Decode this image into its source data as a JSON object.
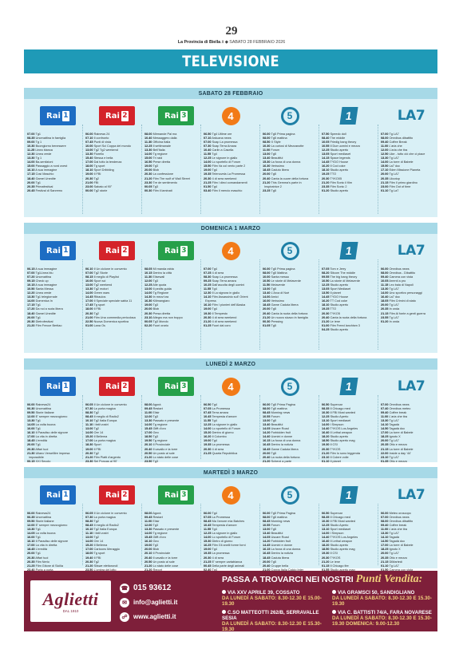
{
  "page": {
    "number": "29",
    "pub_name": "La Provincia di Biella",
    "pub_suffix": ".it",
    "pub_date": "SABATO 28 FEBBRAIO 2026"
  },
  "headline": "TELEVISIONE",
  "days": [
    {
      "title": "SABATO 28 FEBBRAIO",
      "columns": [
        "<b>07.00</b> Tg1\n<b>08.35</b> Unomattina in famiglia\n<b>09.00</b> Tg 1\n<b>10.30</b> Buongiorno benessere\n<b>11.25</b> Linea bianca\n<b>12.30</b> Linea verde\n<b>13.30</b> Tg 1\n<b>14.00</b> Ba-sentizioni\n<b>15.00</b> Passaggio a nord ovest\n<b>16.10</b> A sua immagine\n<b>17.15</b> Cosi Maschio\n<b>18.40</b> Gamel Unedite\n<b>20.00</b> Tg1\n<b>20.35</b> Primafestival\n<b>20.45</b> Festival di Sanremo",
        "<b>06.00</b> Rainews 24\n<b>07.10</b> Il confronto\n<b>07.45</b> Punti di vista\n<b>10.00</b> Sport Sci Coppa del mondo\n<b>13.00</b> Tg2 Tg2 weekend\n<b>13.30</b> Fiorello\n<b>15.40</b> Stessa e bella\n<b>17.00</b> Dai tutto la tendenza\n<b>18.00</b> Tg sport\n<b>18.10</b> Sport Dribbling\n<b>19.00</b> Il FBI\n<b>20.30</b> Tg2\n<b>21.00</b> FBI\n<b>23.00</b> Sabato al 90\"\n<b>00.00</b> Tg2 storie",
        "<b>08.00</b> Mirmande Pal ma\n<b>10.40</b> Messaggero dalla\n<b>11.30</b> Officina Italia\n<b>12.25</b> Il settimanale\n<b>13.30</b> Bell'Italia\n<b>14.00</b> Tg regione\n<b>15.00</b> Tri raid\n<b>16.50</b> Prese diretta\n<b>19.00</b> Tg3\n<b>20.00</b> Blob\n<b>20.30</b> La confessione\n<b>21.20</b> Film The wolf of Wall Street\n<b>23.30</b> Tre de sentimento\n<b>00.05</b> Tg3\n<b>00.30</b> Film il laminati",
        "<b>06.50</b> Tg4 Ultime ore\n<b>07.10</b> Arduana news\n<b>07.00</b> Soap La promessa\n<b>07.30</b> Soap Terra Amara\n<b>10.40</b> Carlin a Casella\n<b>11.55</b> Tg4\n<b>12.25</b> Le signore in giallo\n<b>14.00</b> Lo sportello di Forum\n<b>15.50</b> Film Va col vento parte 2\n<b>19.00</b> Tg4\n<b>19.35</b> Telenovela La Promessa\n<b>20.30</b> 4 di sera weekend\n<b>21.25</b> Film I dieci comandamenti\n<b>01.50</b> Tg4\n<b>03.40</b> Film Il mercio maschio",
        "<b>06.00</b> Tg5 Prima pagina\n<b>08.00</b> Tg5 mattina\n<b>08.50</b> X Style\n<b>10.30</b> La curiosi di Mezzanotte\n<b>11.00</b> Forum\n<b>13.00</b> Tg5\n<b>13.40</b> Beautiful\n<b>15.30</b> La forza di una donna\n<b>16.30</b> Verissimo\n<b>18.45</b> Caduto libero\n<b>20.00</b> Tg5\n<b>20.40</b> Canta la cuore della fortuna\n<b>21.20</b> This Gemma's parte in\n<b>&nbsp;</b> Inspiratrice 2\n<b>23.25</b> Tg5",
        "<b>07.50</b> Speedo doll\n<b>08.40</b> The middle\n<b>10.05</b> Friedig bang theory\n<b>10.55</b> Il Due uomini e mezzo\n<b>12.25</b> Studio aperto\n<b>13.05</b> Sport mediaset\n<b>14.15</b> Space legends\n<b>14.45</b> TYDO House\n<b>16.20</b> Il Cod coke\n<b>18.10</b> Studio aperto\n<b>19.25</b> TTO\n<b>20.30</b> TYKO05\n<b>21.20</b> Film Sonic il film\n<b>23.35</b> Film Sonic 2\n<b>01.20</b> Studio aperto",
        "<b>07.00</b> Tg LA7\n<b>08.00</b> Omnibus dibattito\n<b>09.40</b> Coffee Break\n<b>11.00</b> L'aria che\n<b>12.00</b> L'aria che tira\n<b>12.50</b> Like - tutto ciò che ci piace\n<b>13.30</b> Tg LA7\n<b>14.00</b> La torre di Babele\n<b>15.50</b> La7 doc\n<b>17.10</b> Eden Missione Pianeta\n<b>20.00</b> Tg LA7\n<b>20.35</b> Lilootop\n<b>21.15</b> Film Il primo giardino\n<b>23.00</b> Film Out of time\n<b>01.10</b> Tg La7"
      ]
    },
    {
      "title": "DOMENICA 1 MARZO",
      "columns": [
        "<b>06.15</b> A sua immagine\n<b>07.00</b> Tg1Linea blu\n<b>07.20</b> Unomattina\n<b>09.15</b> Check up\n<b>10.15</b> A sua immagine\n<b>10.50</b> Santa Messa\n<b>12.20</b> Linea verde\n<b>13.30</b> Tg1 telegiornale\n<b>14.00</b> Domenica In\n<b>17.15</b> Tg1\n<b>17.20</b> Da noi a ruota libera\n<b>18.40</b> Gamel Unedite\n<b>20.00</b> Tg1\n<b>20.30</b> Dietrofestival\n<b>21.20</b> Film Frecce Bertiao",
        "<b>06.10</b> Il Un ciclone in convento\n<b>07.00</b> Tg2 Storie\n<b>08.15</b> Il meglio di Playlist\n<b>10.00</b> Sport sci\n<b>13.00</b> Tg2 weekend\n<b>13.30</b> Tg2 motori\n<b>14.00</b> Green wars\n<b>14.45</b> Ribaulos\n<b>17.00</b> Il Speciale speciale sabia 11\n<b>17.45</b> Tg sport\n<b>18.00</b> Il FBI\n<b>20.30</b> Tg2\n<b>21.00</b> Film Una commedia pericolosa\n<b>22.50</b> Nuova Domenica sportiva\n<b>01.00</b> Lana Os",
        "<b>08.05</b> Mi manda rabia\n<b>10.15</b> Dentro la città\n<b>11.30</b> Elisewall\n<b>12.00</b> Tg3\n<b>12.25</b> Alle quota\n<b>13.00</b> Il pediis guida\n<b>14.00</b> Tg Regione\n<b>14.30</b> In mezz'ora\n<b>16.30</b> Kilimangiaro\n<b>19.00</b> Tg3\n<b>20.00</b> Blob\n<b>20.30</b> Presa diretta\n<b>23.10</b> Allegro ma non troppo\n<b>00.05</b> Tg3 Mondo\n<b>02.20</b> Fuori orario",
        "<b>07.00</b> Tg4\n<b>07.25</b> 4 di sera\n<b>08.30</b> Soap La promessa\n<b>09.25</b> Soap Terra amara\n<b>10.25</b> Dall'ascolta degli uomini\n<b>11.55</b> Tg4\n<b>12.30</b> Il La signora in giallo\n<b>14.10</b> Film Assassinio sull' Orient\n<b>&nbsp;</b> Express\n<b>16.10</b> Film I pionieri dell'Alaska\n<b>19.00</b> Tg4\n<b>19.30</b> Il Tempesto\n<b>20.30</b> 4 di sera weekend\n<b>21.20</b> 4 di sera weekend\n<b>01.25</b> Fuori dal coro",
        "<b>06.00</b> Tg5 Prima pagina\n<b>08.00</b> Tg5 Mattina\n<b>10.00</b> Santa messa\n<b>10.50</b> Le storie di Melaverde\n<b>11.50</b> Melaverde\n<b>13.00</b> Tg5\n<b>13.40</b> L'Arca di Noè\n<b>14.00</b> Amici\n<b>16.00</b> Verissimo\n<b>18.45</b> Game Caduta libera\n<b>20.00</b> Tg5\n<b>20.40</b> Canta la ruota della fortuna\n<b>21.20</b> Un nuovo sicavo in famiglia\n<b>00.30</b> Pressing\n<b>01.05</b> Tg5",
        "<b>07.05</b> Tom e Jerry\n<b>08.20</b> Sitcom The middle\n<b>09.55</b> The big bang theory\n<b>10.50</b> La storie di Melaverde\n<b>12.25</b> Studio aperto\n<b>13.05</b> Sport Mediaset\n<b>13.50</b> Il planet\n<b>14.45</b> TYDO House\n<b>16.20</b> TT Cod coke\n<b>18.10</b> Studio aperto\n<b>19.25</b> TTO\n<b>20.30</b> TYKO5\n<b>20.40</b> Canta la ruota della fortuna\n<b>21.20</b> Le iene\n<b>01.00</b> Film Freed lanchism 3\n<b>04.25</b> Studio aperto",
        "<b>06.00</b> Omnibus news\n<b>08.00</b> Omnibus - Dibattito\n<b>09.40</b> Camera con vista\n<b>10.05</b> Arrenti a pro\n<b>11.15</b> Leo baia di Napoli\n<b>13.30</b> Tg LA7\n<b>14.00</b> Uno sportivo personaggi\n<b>16.40</b> La7 doc\n<b>18.05</b> Film Crimini di stato\n<b>20.00</b> Tg LA7\n<b>20.35</b> In onda\n<b>21.15</b> Film Al fonte a genti guerra\n<b>23.55</b> Tg LA7\n<b>01.20</b> In onda"
      ]
    },
    {
      "title": "LUNEDÌ 2 MARZO",
      "columns": [
        "<b>06.00</b> Rainews24\n<b>06.30</b> Unomattina\n<b>09.50</b> Storie Italiane\n<b>12.00</b> E' sempre mezzogiorno\n<b>13.30</b> Tg1\n<b>14.05</b> La volta buona\n<b>16.00</b> Tg1\n<b>16.10</b> Il Paradiso delle signore\n<b>17.00</b> La vita in diretta\n<b>18.45</b> L'eredità\n<b>20.00</b> Tg1\n<b>20.30</b> Affari tuoi\n<b>21.30</b> Uliano Verselllire impresa\n<b>&nbsp;</b> impossibile\n<b>00.15</b> XXI Secolo",
        "<b>06.05</b> Il Un ciclone in convento\n<b>07.30</b> La porta magica\n<b>08.30</b> Tg2\n<b>08.45</b> Il meglio di Radio2\n<b>10.10</b> Tg2 Italia Europa\n<b>11.10</b> I fatti vostri\n<b>13.00</b> Tg2\n<b>14.00</b> Ore 14\n<b>15.20</b> Il Bellema\n<b>17.00</b> La porta magica\n<b>18.30</b> Sport\n<b>19.00</b> Il FBI\n<b>20.30</b> Tg2\n<b>21.20</b> Film Piatti d'argento\n<b>23.30</b> Sei Poncas al 90'",
        "<b>08.00</b> Agorà\n<b>09.45</b> Restart\n<b>11.00</b> Elisir\n<b>12.00</b> Tg3\n<b>13.30</b> Passato e presente\n<b>14.00</b> Tg regione\n<b>15.45</b> Gifft d'oro\n<b>17.00</b> Geo\n<b>18.50</b> Tg3\n<b>19.50</b> Tg regione\n<b>20.10</b> Il Provinciale\n<b>20.40</b> Il cavallo e la torre\n<b>20.50</b> Un posto al sole\n<b>21.20</b> Lo stato delle cose\n<b>23.50</b> Tg3",
        "<b>06.50</b> Tg4\n<b>07.05</b> La Promessa\n<b>07.45</b> Terra amara\n<b>10.45</b> Tempesta d'amore\n<b>11.55</b> Tg4\n<b>12.25</b> La signore in giallo\n<b>14.00</b> Lo sportello di Forum\n<b>15.20</b> Dentro di giorno\n<b>16.20</b> Il Colombo\n<b>19.00</b> Tg4\n<b>19.35</b> La promessa\n<b>20.30</b> 4 di sera\n<b>21.25</b> Quarta Repubblica",
        "<b>06.00</b> Tg5 Prima Pagina\n<b>08.00</b> Tg5 mattina\n<b>08.45</b> Morning news\n<b>10.55</b> Forum\n<b>13.00</b> Tg5\n<b>13.40</b> Beautiful\n<b>14.05</b> Uscare Road\n<b>14.20</b> Forbidden fruit\n<b>14.40</b> Uomini e donne\n<b>16.15</b> La forza di una donna\n<b>16.45</b> Dentro la notizia\n<b>18.45</b> Game Caduta libera\n<b>20.00</b> Tg5\n<b>20.40</b> La ruota della fortuna\n<b>21.20</b> Scherzi a parte",
        "<b>06.50</b> Supercar\n<b>08.35</b> Il Chicago med\n<b>10.30</b> Il FBI Most wanted\n<b>12.25</b> Studio Aperto\n<b>13.10</b> Sport mediaset\n<b>14.00</b> I Simpson\n<b>14.40</b> TYKOS Los Angeles\n<b>16.40</b> Il Lethal weapon\n<b>18.20</b> Studio aperto\n<b>18.50</b> Studio aperto mag\n<b>19.30</b> Il CSI\n<b>20.30</b> TYKOS\n<b>21.20</b> Film Io sono leggenda\n<b>23.10</b> Il Colere volle\n<b>01.10</b> Il planet",
        "<b>07.00</b> Omnibus news\n<b>07.40</b> Omnibus meteo\n<b>09.40</b> Coffee break\n<b>11.00</b> L'aria che tira\n<b>13.30</b> Tg LA7\n<b>14.10</b> Tagadà\n<b>14.50</b> Tagadà doc\n<b>17.00</b> La torre di Babele\n<b>18.25</b> Ignoto X\n<b>20.00</b> Tg LA7\n<b>20.35</b> Otto e mezzo\n<b>21.15</b> La torre di Babele\n<b>22.00</b> Inside a day ‘44'\n<b>23.10</b> Tg LA7\n<b>01.35</b> Otto e mezzo"
      ]
    },
    {
      "title": "MARTEDÌ 3 MARZO",
      "columns": [
        "<b>06.00</b> Rainews24\n<b>06.35</b> Unomattina\n<b>09.50</b> Storie italiane\n<b>12.00</b> E' sempre mezzogiorno\n<b>13.30</b> Tg1\n<b>14.05</b> La volta buona\n<b>16.00</b> Tg1\n<b>16.10</b> Il Paradiso delle signore\n<b>17.00</b> La vita in diretta\n<b>18.45</b> L'eredità\n<b>20.00</b> Tg1\n<b>20.30</b> Affari tuoi\n<b>20.35</b> Film Nerio\n<b>21.25</b> Film Gitone di Sicilia\n<b>23.40</b> Porta a porta",
        "<b>06.05</b> Il Un ciclone in convento\n<b>07.30</b> La porta magica\n<b>08.30</b> Tg2\n<b>08.45</b> Il meglio di Radio2\n<b>10.10</b> Tg2 Italia Europa\n<b>11.10</b> I fatti vostri\n<b>13.00</b> Tg2\n<b>14.00</b> Ore 14\n<b>15.20</b> Il Bellema\n<b>17.00</b> Cartoons Meraggio\n<b>18.00</b> Tg sport\n<b>19.40</b> Il FBI\n<b>20.30</b> Tg2\n<b>21.20</b> Sliswe elettorondi\n<b>23.50</b> L'ombra del lotto",
        "<b>08.00</b> Agorà\n<b>09.45</b> Restart\n<b>11.00</b> Elisir\n<b>12.00</b> Tg3\n<b>13.30</b> Passato e presente\n<b>14.00</b> Tg regione\n<b>15.45</b> Gifft d'oro\n<b>16.10</b> Geo\n<b>19.00</b> Tg3\n<b>20.00</b> Blob\n<b>20.10</b> Il Provinciale\n<b>20.40</b> Il cavallo e la torre\n<b>20.50</b> Un posto al sole\n<b>21.20</b> Lo stato delle cose\n<b>21.20</b> Report",
        "<b>06.00</b> Tg4\n<b>07.05</b> La Promessa\n<b>08.45</b> Ma l'amore mia Batches\n<b>10.45</b> Tempesta d'amore\n<b>11.55</b> Tg4\n<b>12.25</b> La signore in giallo\n<b>14.00</b> Lo sportello di Forum\n<b>15.30</b> Dietro di giorno\n<b>16.25</b> Film Gli anelli forme forni\n<b>19.00</b> Tg4\n<b>19.35</b> La promessa\n<b>20.30</b> 4 di sera\n<b>21.25</b> E' sempre cartabianca\n<b>00.45</b> Della parte degli animali\n<b>02.40</b> Tg4",
        "<b>06.00</b> Tg5 Prima Pagina\n<b>08.00</b> Tg5 mattina\n<b>08.45</b> Morning news\n<b>10.55</b> Forum\n<b>13.00</b> Tg5\n<b>13.40</b> Beautiful\n<b>14.05</b> Uscare Road\n<b>14.20</b> Forbidden fruit\n<b>14.45</b> Uomini e donne\n<b>16.15</b> La forza di una donna\n<b>16.45</b> Dentro la notizia\n<b>18.45</b> Caduta libera\n<b>20.00</b> Tg5\n<b>20.40</b> Cruppe bella\n<b>21.00</b> Coppa Italia Calcio Inter",
        "<b>06.50</b> Supercar\n<b>08.35</b> Il Chicago med\n<b>10.30</b> Il FBI Most wanted\n<b>12.25</b> Studio Aperto\n<b>13.10</b> Sport mediaset\n<b>14.00</b> I Simpson\n<b>14.40</b> TYKOS Los Angeles\n<b>16.40</b> Il Lethal weapon\n<b>18.20</b> Studio aperto\n<b>18.50</b> Studio aperto mag\n<b>19.30</b> Il CSI\n<b>20.30</b> TYKOS\n<b>21.20</b> Le iene\n<b>01.15</b> Il Chicago fire\n<b>01.55</b> Studio aperto mag",
        "<b>06.00</b> Meteo oroscopo\n<b>07.00</b> Omnibus news\n<b>08.00</b> Omnibus dibattito\n<b>09.40</b> Coffee break\n<b>11.00</b> L'aria che tira\n<b>13.30</b> Tg LA7\n<b>14.10</b> Tagadà\n<b>14.50</b> Tagadà doc\n<b>17.00</b> La torre di Babele\n<b>18.25</b> Ignoto X\n<b>20.00</b> Tg LA7\n<b>20.35</b> Otto e mezzo\n<b>21.15</b> DiMartedì\n<b>01.10</b> Tg LA7\n<b>01.50</b> Camera con vista"
      ]
    }
  ],
  "channels": [
    "Rai 1",
    "Rai 2",
    "Rai 3",
    "Rete 4",
    "Canale 5",
    "Italia 1",
    "La7"
  ],
  "ad": {
    "brand": "Aglietti",
    "brand_sub": "DAL 1910",
    "phone": "015 93612",
    "email": "info@aglietti.it",
    "web": "www.aglietti.it",
    "title_a": "PASSA A TROVARCI NEI NOSTRI ",
    "title_b": "Punti Vendita:",
    "stores": [
      {
        "addr": "VIA XXV APRILE 39, COSSATO",
        "hours": "DA LUNEDÌ A SABATO: 8.30-12.30 E 15.00-19.30"
      },
      {
        "addr": "VIA GRAMSCI 50, SANDIGLIANO",
        "hours": "DA LUNEDÌ A SABATO: 8.30-12.30 E 15.30-19.30"
      },
      {
        "addr": "C.SO MATTEOTTI 262/B, SERRAVALLE SESIA",
        "hours": "DA LUNEDÌ A SABATO: 8.30-12.30 E 15.30-19.30"
      },
      {
        "addr": "VIA C. BATTISTI 74/A, FARA NOVARESE",
        "hours": "DA LUNEDÌ A SABATO: 8.30-12.30 E 15.30-19.30  DOMENICA: 9.00-12.30"
      }
    ]
  }
}
